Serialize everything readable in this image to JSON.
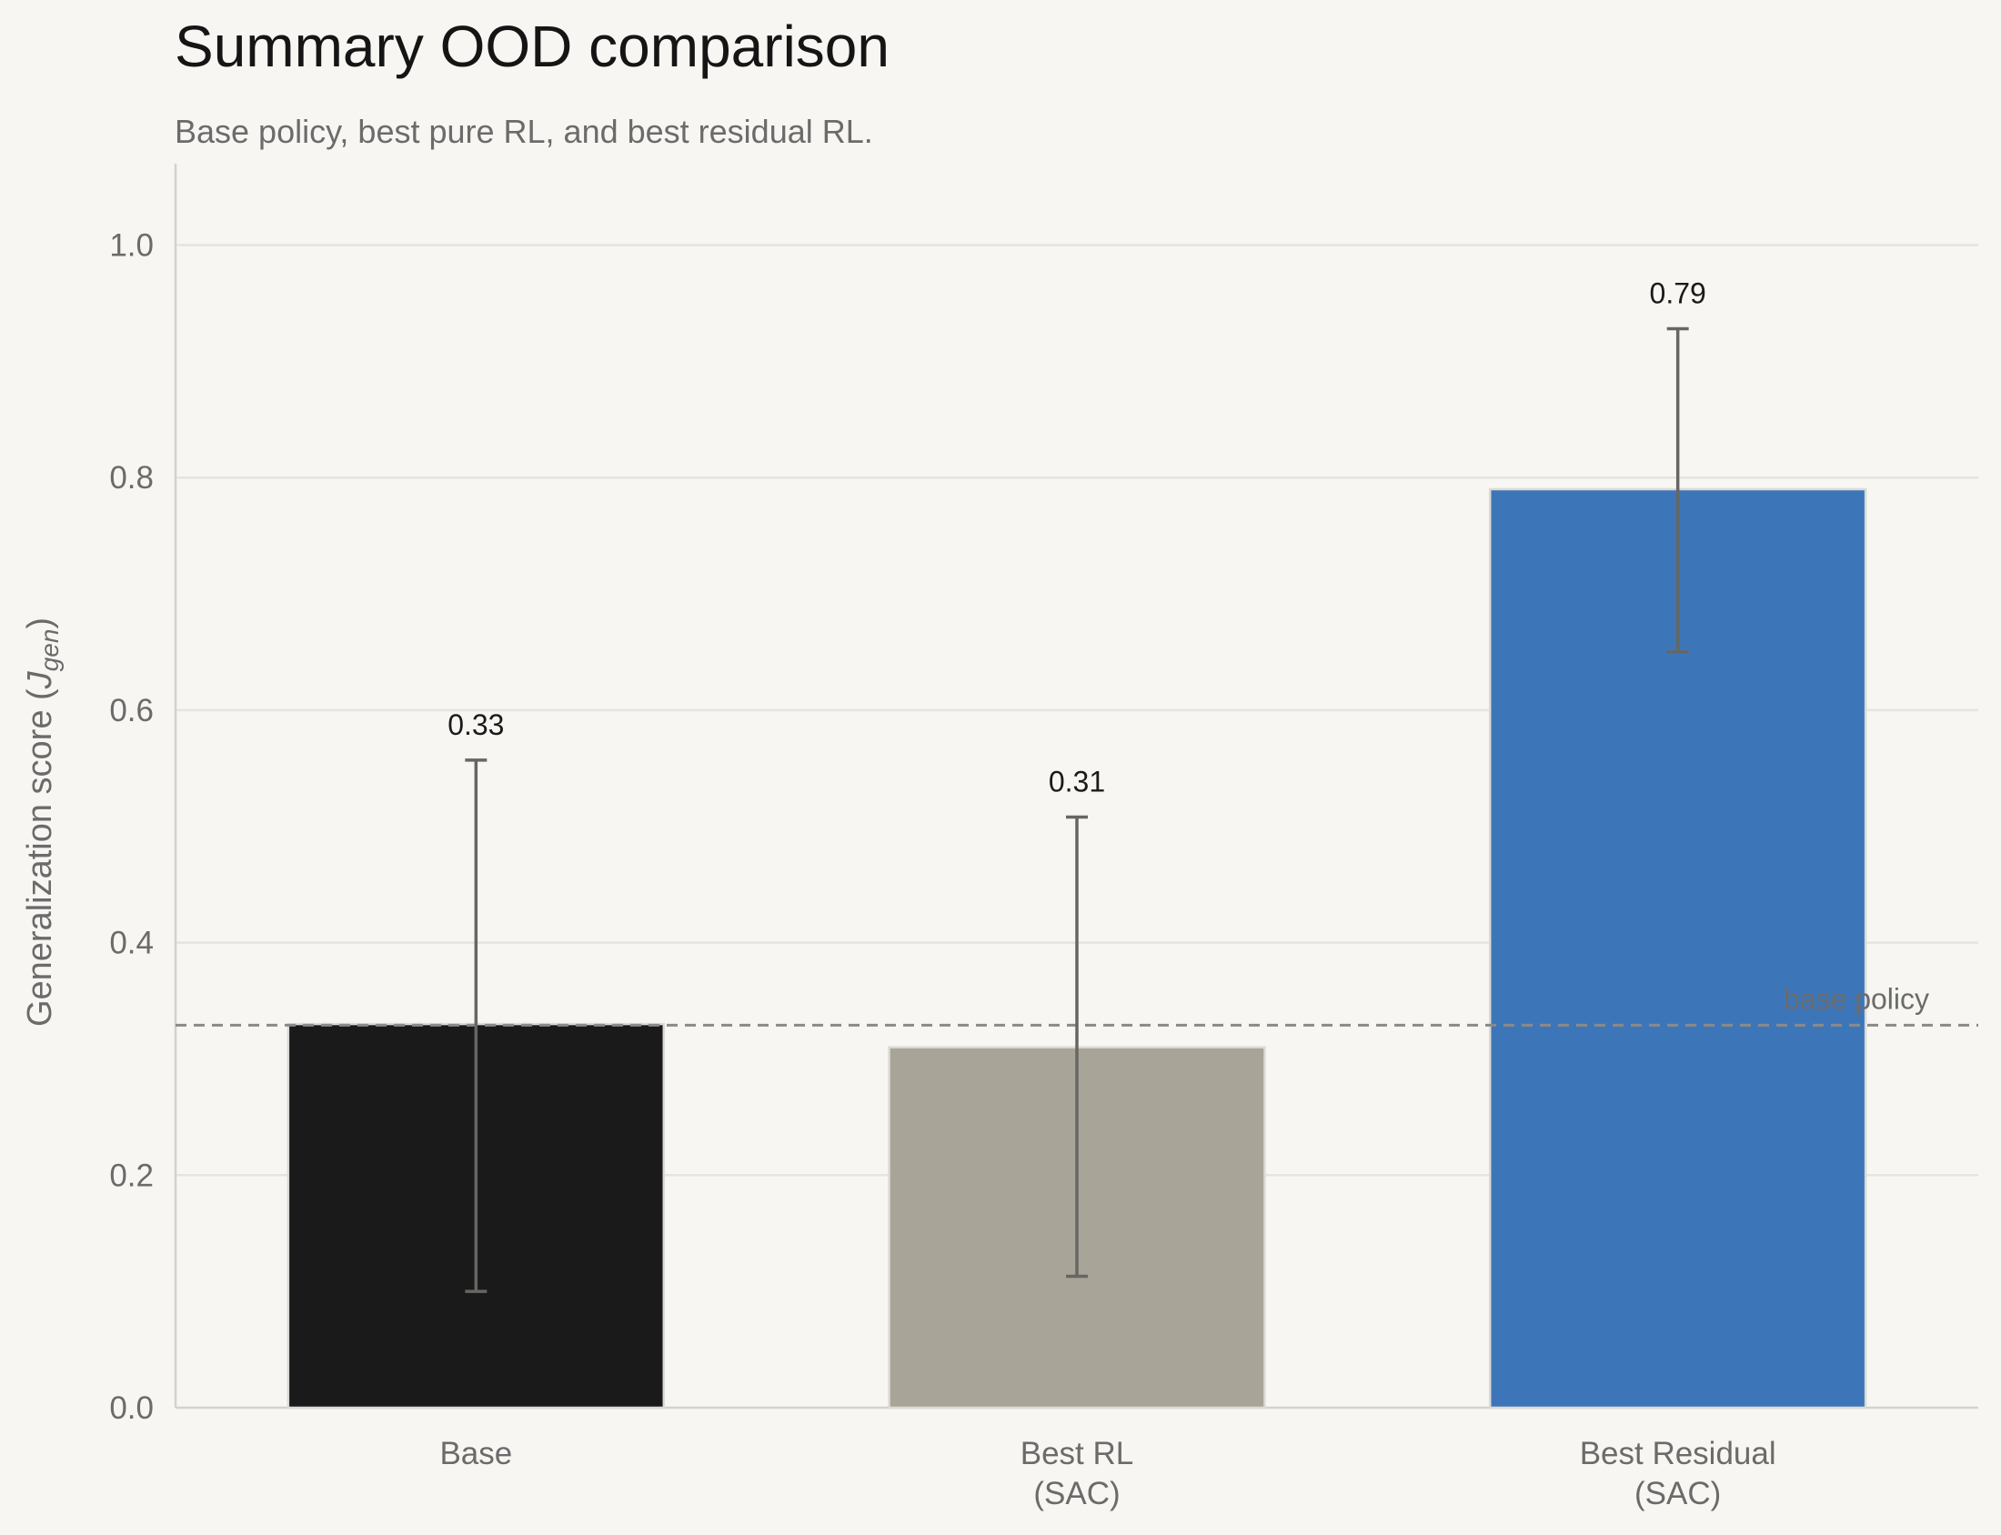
{
  "chart_data": {
    "type": "bar",
    "title": "Summary OOD comparison",
    "subtitle": "Base policy, best pure RL, and best residual RL.",
    "ylabel_main": "Generalization score (",
    "ylabel_sym": "J",
    "ylabel_sub": "gen",
    "ylabel_close": ")",
    "xlabel": "",
    "ylim": [
      0,
      1.07
    ],
    "yticks": [
      0.0,
      0.2,
      0.4,
      0.6,
      0.8,
      1.0
    ],
    "ytick_labels": [
      "0.0",
      "0.2",
      "0.4",
      "0.6",
      "0.8",
      "1.0"
    ],
    "grid": "horizontal",
    "categories": [
      {
        "lines": [
          "Base"
        ]
      },
      {
        "lines": [
          "Best RL",
          "(SAC)"
        ]
      },
      {
        "lines": [
          "Best Residual",
          "(SAC)"
        ]
      }
    ],
    "values": [
      0.33,
      0.31,
      0.79
    ],
    "value_labels": [
      "0.33",
      "0.31",
      "0.79"
    ],
    "error_low": [
      0.1,
      0.113,
      0.65
    ],
    "error_high": [
      0.557,
      0.508,
      0.928
    ],
    "colors": [
      "#1a1a1a",
      "#a8a498",
      "#3d76b8"
    ],
    "reference_line": {
      "value": 0.329,
      "label": "base policy",
      "color": "#8a8a8a"
    },
    "error_color": "#666662",
    "grid_color": "#e6e4e0",
    "axis_color": "#d4d2ce"
  }
}
